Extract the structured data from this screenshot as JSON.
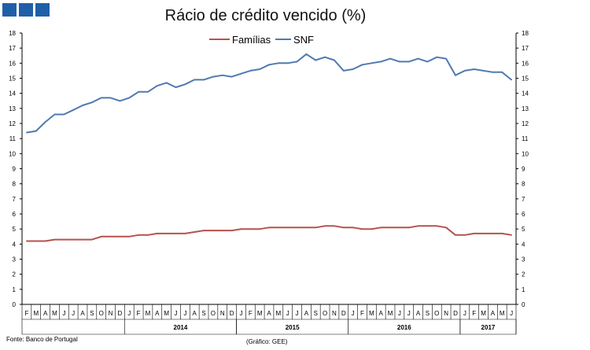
{
  "header": {
    "title": "Rácio de crédito vencido (%)",
    "logo_icon": "bank-logo-icon"
  },
  "footer": {
    "source": "Fonte: Banco de Portugal",
    "credit": "(Gráfico: GEE)"
  },
  "colors": {
    "familias": "#b5524f",
    "snf": "#4f7ab0",
    "axis": "#000000",
    "logo": "#1f5fa8"
  },
  "chart_data": {
    "type": "line",
    "title": "Rácio de crédito vencido (%)",
    "xlabel": "",
    "ylabel": "",
    "ylim": [
      0,
      18
    ],
    "yticks": [
      0,
      1,
      2,
      3,
      4,
      5,
      6,
      7,
      8,
      9,
      10,
      11,
      12,
      13,
      14,
      15,
      16,
      17,
      18
    ],
    "secondary_y": true,
    "grid": false,
    "legend": "top-center",
    "month_labels": [
      "F",
      "M",
      "A",
      "M",
      "J",
      "J",
      "A",
      "S",
      "O",
      "N",
      "D",
      "J",
      "F",
      "M",
      "A",
      "M",
      "J",
      "J",
      "A",
      "S",
      "O",
      "N",
      "D",
      "J",
      "F",
      "M",
      "A",
      "M",
      "J",
      "J",
      "A",
      "S",
      "O",
      "N",
      "D",
      "J",
      "F",
      "M",
      "A",
      "M",
      "J",
      "J",
      "A",
      "S",
      "O",
      "N",
      "D",
      "J",
      "F",
      "M",
      "A",
      "M",
      "J"
    ],
    "year_labels": [
      {
        "label": "2014",
        "start": 11,
        "end": 22
      },
      {
        "label": "2015",
        "start": 23,
        "end": 34
      },
      {
        "label": "2016",
        "start": 35,
        "end": 46
      },
      {
        "label": "2017",
        "start": 47,
        "end": 52
      }
    ],
    "series": [
      {
        "name": "Famílias",
        "values": [
          4.2,
          4.2,
          4.2,
          4.3,
          4.3,
          4.3,
          4.3,
          4.3,
          4.5,
          4.5,
          4.5,
          4.5,
          4.6,
          4.6,
          4.7,
          4.7,
          4.7,
          4.7,
          4.8,
          4.9,
          4.9,
          4.9,
          4.9,
          5.0,
          5.0,
          5.0,
          5.1,
          5.1,
          5.1,
          5.1,
          5.1,
          5.1,
          5.2,
          5.2,
          5.1,
          5.1,
          5.0,
          5.0,
          5.1,
          5.1,
          5.1,
          5.1,
          5.2,
          5.2,
          5.2,
          5.1,
          4.6,
          4.6,
          4.7,
          4.7,
          4.7,
          4.7,
          4.6
        ]
      },
      {
        "name": "SNF",
        "values": [
          11.4,
          11.5,
          12.1,
          12.6,
          12.6,
          12.9,
          13.2,
          13.4,
          13.7,
          13.7,
          13.5,
          13.7,
          14.1,
          14.1,
          14.5,
          14.7,
          14.4,
          14.6,
          14.9,
          14.9,
          15.1,
          15.2,
          15.1,
          15.3,
          15.5,
          15.6,
          15.9,
          16.0,
          16.0,
          16.1,
          16.6,
          16.2,
          16.4,
          16.2,
          15.5,
          15.6,
          15.9,
          16.0,
          16.1,
          16.3,
          16.1,
          16.1,
          16.3,
          16.1,
          16.4,
          16.3,
          15.2,
          15.5,
          15.6,
          15.5,
          15.4,
          15.4,
          14.9
        ]
      }
    ]
  }
}
